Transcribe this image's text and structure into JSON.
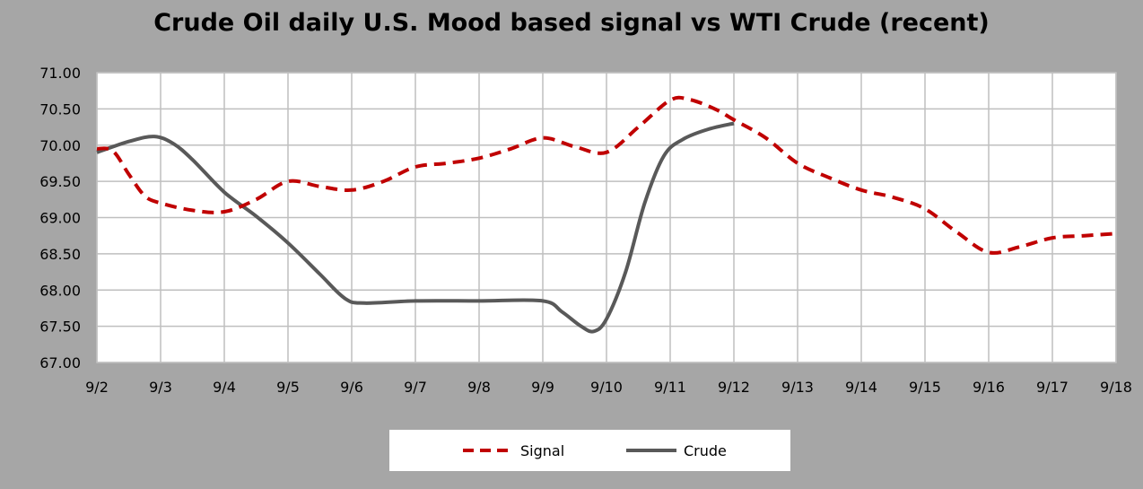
{
  "chart_data": {
    "type": "line",
    "title": "Crude Oil daily U.S. Mood based signal vs WTI Crude (recent)",
    "categories": [
      "9/2",
      "9/3",
      "9/4",
      "9/5",
      "9/6",
      "9/7",
      "9/8",
      "9/9",
      "9/10",
      "9/11",
      "9/12",
      "9/13",
      "9/14",
      "9/15",
      "9/16",
      "9/17",
      "9/18"
    ],
    "y_tick_labels": [
      "67.00",
      "67.50",
      "68.00",
      "68.50",
      "69.00",
      "69.50",
      "70.00",
      "70.50",
      "71.00"
    ],
    "ylim": [
      67,
      71
    ],
    "grid": true,
    "legend_position": "bottom",
    "series": [
      {
        "name": "Signal",
        "style": "dashed",
        "color": "#c00000",
        "points": [
          [
            0,
            69.95
          ],
          [
            0.25,
            69.92
          ],
          [
            0.5,
            69.6
          ],
          [
            0.75,
            69.3
          ],
          [
            1,
            69.2
          ],
          [
            1.5,
            69.1
          ],
          [
            2,
            69.08
          ],
          [
            2.5,
            69.25
          ],
          [
            3,
            69.5
          ],
          [
            3.5,
            69.43
          ],
          [
            4,
            69.38
          ],
          [
            4.5,
            69.5
          ],
          [
            5,
            69.7
          ],
          [
            5.5,
            69.75
          ],
          [
            6,
            69.82
          ],
          [
            6.5,
            69.95
          ],
          [
            7,
            70.1
          ],
          [
            7.5,
            69.98
          ],
          [
            8,
            69.9
          ],
          [
            8.5,
            70.25
          ],
          [
            9,
            70.62
          ],
          [
            9.3,
            70.63
          ],
          [
            9.7,
            70.5
          ],
          [
            10,
            70.35
          ],
          [
            10.5,
            70.1
          ],
          [
            11,
            69.75
          ],
          [
            11.5,
            69.55
          ],
          [
            12,
            69.38
          ],
          [
            12.5,
            69.28
          ],
          [
            13,
            69.12
          ],
          [
            13.5,
            68.8
          ],
          [
            14,
            68.52
          ],
          [
            14.5,
            68.6
          ],
          [
            15,
            68.72
          ],
          [
            15.5,
            68.75
          ],
          [
            16,
            68.78
          ]
        ]
      },
      {
        "name": "Crude",
        "style": "solid",
        "color": "#595959",
        "points": [
          [
            0,
            69.9
          ],
          [
            0.5,
            70.05
          ],
          [
            0.9,
            70.12
          ],
          [
            1.2,
            70.02
          ],
          [
            1.5,
            69.8
          ],
          [
            2,
            69.35
          ],
          [
            2.5,
            69.02
          ],
          [
            3,
            68.65
          ],
          [
            3.5,
            68.22
          ],
          [
            3.9,
            67.88
          ],
          [
            4.2,
            67.82
          ],
          [
            5,
            67.85
          ],
          [
            6,
            67.85
          ],
          [
            7,
            67.85
          ],
          [
            7.3,
            67.7
          ],
          [
            7.6,
            67.5
          ],
          [
            7.8,
            67.43
          ],
          [
            8,
            67.6
          ],
          [
            8.3,
            68.25
          ],
          [
            8.6,
            69.2
          ],
          [
            8.9,
            69.85
          ],
          [
            9.2,
            70.08
          ],
          [
            9.6,
            70.22
          ],
          [
            10,
            70.3
          ]
        ]
      }
    ]
  }
}
